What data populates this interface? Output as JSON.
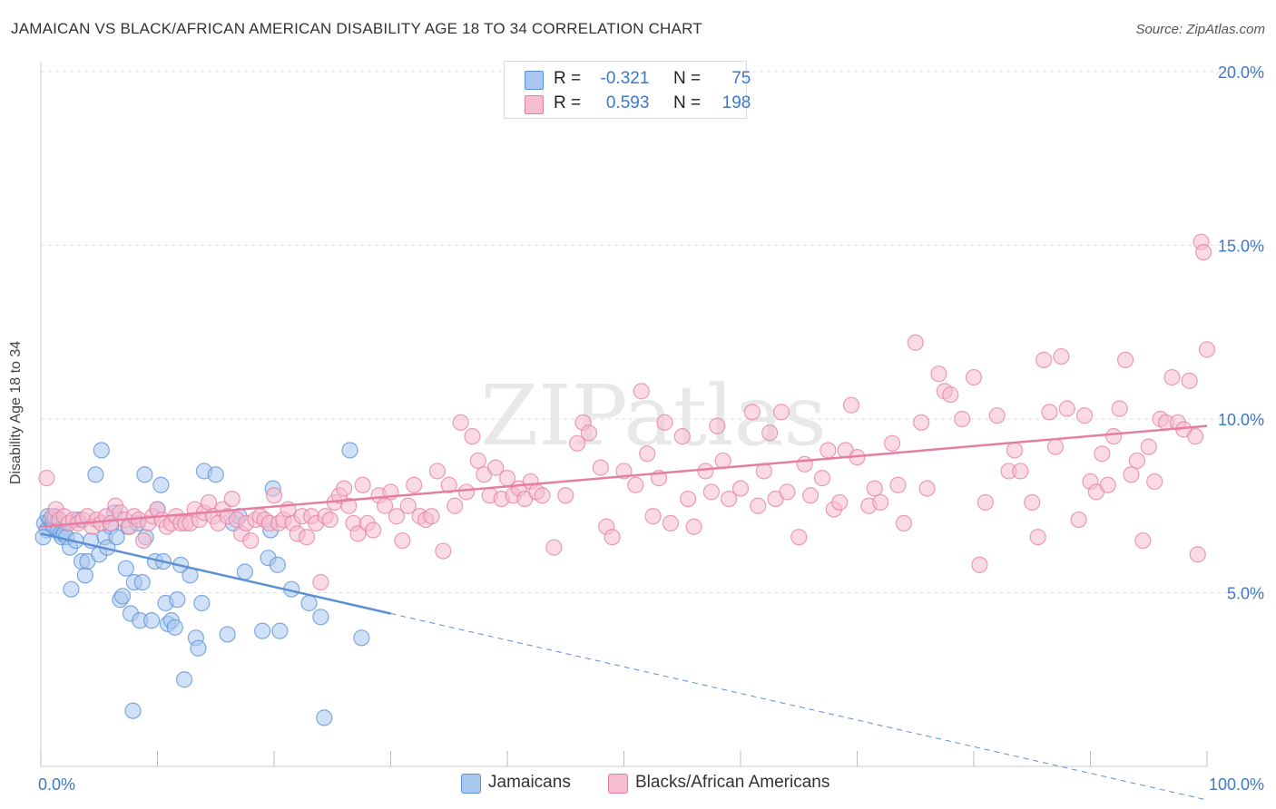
{
  "title": "JAMAICAN VS BLACK/AFRICAN AMERICAN DISABILITY AGE 18 TO 34 CORRELATION CHART",
  "source": "Source: ZipAtlas.com",
  "watermark": "ZIPatlas",
  "legend": {
    "r_label": "R =",
    "n_label": "N =",
    "series": [
      {
        "r": "-0.321",
        "n": "75",
        "fill": "#a9c8f0",
        "stroke": "#5b8fd6"
      },
      {
        "r": "0.593",
        "n": "198",
        "fill": "#f6bccf",
        "stroke": "#e47fa2"
      }
    ]
  },
  "bottom_legend": [
    "Jamaicans",
    "Blacks/African Americans"
  ],
  "chart_data": {
    "type": "scatter",
    "title": "JAMAICAN VS BLACK/AFRICAN AMERICAN DISABILITY AGE 18 TO 34 CORRELATION CHART",
    "xlabel": "",
    "ylabel": "Disability Age 18 to 34",
    "xlim": [
      0,
      100
    ],
    "ylim": [
      0,
      20.8
    ],
    "x_tick_labels": [
      "0.0%",
      "100.0%"
    ],
    "y_ticks": [
      5,
      10,
      15,
      20
    ],
    "y_tick_labels": [
      "5.0%",
      "10.0%",
      "15.0%",
      "20.0%"
    ],
    "grid": "horizontal dashed",
    "legend_position": "top-center",
    "series": [
      {
        "name": "Jamaicans",
        "color": "#5b8fd6",
        "fill": "#a9c8f0",
        "trend": {
          "x0": 0,
          "y0": 6.7,
          "x1": 30,
          "y1": 4.4,
          "dashed_to_x": 100
        },
        "points": [
          [
            0.3,
            7.0
          ],
          [
            0.5,
            6.8
          ],
          [
            0.6,
            7.2
          ],
          [
            0.8,
            7.1
          ],
          [
            1.0,
            7.0
          ],
          [
            1.1,
            6.9
          ],
          [
            1.2,
            7.2
          ],
          [
            1.5,
            6.8
          ],
          [
            1.7,
            6.7
          ],
          [
            1.8,
            6.6
          ],
          [
            2.0,
            6.7
          ],
          [
            2.2,
            6.6
          ],
          [
            2.5,
            6.3
          ],
          [
            2.6,
            5.1
          ],
          [
            3.0,
            6.5
          ],
          [
            3.2,
            7.1
          ],
          [
            3.5,
            5.9
          ],
          [
            3.8,
            5.5
          ],
          [
            4.0,
            5.9
          ],
          [
            4.3,
            6.5
          ],
          [
            4.7,
            8.4
          ],
          [
            5.0,
            6.1
          ],
          [
            5.2,
            9.1
          ],
          [
            5.5,
            6.6
          ],
          [
            5.7,
            6.3
          ],
          [
            6.0,
            6.9
          ],
          [
            6.3,
            7.3
          ],
          [
            6.5,
            6.6
          ],
          [
            6.8,
            4.8
          ],
          [
            7.0,
            4.9
          ],
          [
            7.3,
            5.7
          ],
          [
            7.5,
            6.9
          ],
          [
            7.7,
            4.4
          ],
          [
            7.9,
            1.6
          ],
          [
            8.0,
            5.3
          ],
          [
            8.3,
            7.0
          ],
          [
            8.5,
            4.2
          ],
          [
            8.7,
            5.3
          ],
          [
            8.9,
            8.4
          ],
          [
            9.0,
            6.6
          ],
          [
            9.5,
            4.2
          ],
          [
            9.8,
            5.9
          ],
          [
            10.0,
            7.4
          ],
          [
            10.3,
            8.1
          ],
          [
            10.5,
            5.9
          ],
          [
            10.7,
            4.7
          ],
          [
            10.9,
            4.1
          ],
          [
            11.2,
            4.2
          ],
          [
            11.5,
            4.0
          ],
          [
            11.7,
            4.8
          ],
          [
            12.0,
            5.8
          ],
          [
            12.3,
            2.5
          ],
          [
            12.8,
            5.5
          ],
          [
            13.3,
            3.7
          ],
          [
            13.5,
            3.4
          ],
          [
            13.8,
            4.7
          ],
          [
            14.0,
            8.5
          ],
          [
            15.0,
            8.4
          ],
          [
            16.0,
            3.8
          ],
          [
            16.5,
            7.0
          ],
          [
            17.0,
            7.2
          ],
          [
            17.5,
            5.6
          ],
          [
            19.0,
            3.9
          ],
          [
            19.5,
            6.0
          ],
          [
            19.7,
            6.8
          ],
          [
            19.9,
            8.0
          ],
          [
            20.3,
            5.8
          ],
          [
            20.5,
            3.9
          ],
          [
            21.5,
            5.1
          ],
          [
            23.0,
            4.7
          ],
          [
            24.0,
            4.3
          ],
          [
            24.3,
            1.4
          ],
          [
            26.5,
            9.1
          ],
          [
            27.5,
            3.7
          ],
          [
            0.2,
            6.6
          ]
        ]
      },
      {
        "name": "Blacks/African Americans",
        "color": "#e47fa2",
        "fill": "#f6bccf",
        "trend": {
          "x0": 0,
          "y0": 6.9,
          "x1": 100,
          "y1": 9.8
        },
        "points": [
          [
            0.5,
            8.3
          ],
          [
            1.0,
            7.2
          ],
          [
            1.3,
            7.4
          ],
          [
            1.6,
            7.1
          ],
          [
            2.0,
            7.2
          ],
          [
            2.4,
            7.0
          ],
          [
            2.8,
            7.1
          ],
          [
            3.2,
            7.0
          ],
          [
            3.6,
            7.1
          ],
          [
            4.0,
            7.2
          ],
          [
            4.4,
            6.9
          ],
          [
            4.8,
            7.1
          ],
          [
            5.2,
            7.0
          ],
          [
            5.6,
            7.2
          ],
          [
            6.0,
            7.0
          ],
          [
            6.4,
            7.5
          ],
          [
            6.8,
            7.3
          ],
          [
            7.2,
            7.1
          ],
          [
            7.6,
            6.9
          ],
          [
            8.0,
            7.2
          ],
          [
            8.4,
            7.1
          ],
          [
            8.8,
            6.5
          ],
          [
            9.2,
            7.0
          ],
          [
            9.6,
            7.2
          ],
          [
            10.0,
            7.4
          ],
          [
            10.4,
            7.1
          ],
          [
            10.8,
            6.9
          ],
          [
            11.2,
            7.0
          ],
          [
            11.6,
            7.2
          ],
          [
            12.0,
            7.0
          ],
          [
            12.4,
            7.0
          ],
          [
            12.8,
            7.0
          ],
          [
            13.2,
            7.4
          ],
          [
            13.6,
            7.1
          ],
          [
            14.0,
            7.3
          ],
          [
            14.4,
            7.6
          ],
          [
            14.8,
            7.2
          ],
          [
            15.2,
            7.0
          ],
          [
            15.6,
            7.4
          ],
          [
            16.0,
            7.2
          ],
          [
            16.4,
            7.7
          ],
          [
            16.8,
            7.1
          ],
          [
            17.2,
            6.7
          ],
          [
            17.6,
            7.0
          ],
          [
            18.0,
            6.5
          ],
          [
            18.4,
            7.1
          ],
          [
            18.8,
            7.2
          ],
          [
            19.2,
            7.1
          ],
          [
            19.6,
            7.0
          ],
          [
            20.0,
            7.8
          ],
          [
            20.4,
            7.0
          ],
          [
            20.8,
            7.1
          ],
          [
            21.2,
            7.4
          ],
          [
            21.6,
            7.0
          ],
          [
            22.0,
            6.7
          ],
          [
            22.4,
            7.2
          ],
          [
            22.8,
            6.6
          ],
          [
            23.2,
            7.2
          ],
          [
            23.6,
            7.0
          ],
          [
            24.0,
            5.3
          ],
          [
            24.4,
            7.2
          ],
          [
            24.8,
            7.1
          ],
          [
            25.2,
            7.6
          ],
          [
            25.6,
            7.8
          ],
          [
            26.0,
            8.0
          ],
          [
            26.4,
            7.5
          ],
          [
            26.8,
            7.0
          ],
          [
            27.2,
            6.7
          ],
          [
            27.6,
            8.1
          ],
          [
            28.0,
            7.0
          ],
          [
            28.5,
            6.8
          ],
          [
            29.0,
            7.8
          ],
          [
            29.5,
            7.5
          ],
          [
            30.0,
            7.9
          ],
          [
            30.5,
            7.2
          ],
          [
            31.0,
            6.5
          ],
          [
            31.5,
            7.5
          ],
          [
            32.0,
            8.1
          ],
          [
            32.5,
            7.2
          ],
          [
            33.0,
            7.1
          ],
          [
            33.5,
            7.2
          ],
          [
            34.0,
            8.5
          ],
          [
            34.5,
            6.2
          ],
          [
            35.0,
            8.1
          ],
          [
            35.5,
            7.5
          ],
          [
            36.0,
            9.9
          ],
          [
            36.5,
            7.9
          ],
          [
            37.0,
            9.5
          ],
          [
            37.5,
            8.8
          ],
          [
            38.0,
            8.4
          ],
          [
            38.5,
            7.8
          ],
          [
            39.0,
            8.6
          ],
          [
            39.5,
            7.7
          ],
          [
            40.0,
            8.3
          ],
          [
            40.5,
            7.8
          ],
          [
            41.0,
            8.0
          ],
          [
            41.5,
            7.7
          ],
          [
            42.0,
            8.2
          ],
          [
            42.5,
            7.9
          ],
          [
            43.0,
            7.8
          ],
          [
            44.0,
            6.3
          ],
          [
            45.0,
            7.8
          ],
          [
            46.0,
            9.3
          ],
          [
            46.5,
            9.9
          ],
          [
            47.0,
            9.6
          ],
          [
            48.0,
            8.6
          ],
          [
            48.5,
            6.9
          ],
          [
            49.0,
            6.6
          ],
          [
            50.0,
            8.5
          ],
          [
            51.0,
            8.1
          ],
          [
            51.5,
            10.8
          ],
          [
            52.0,
            9.0
          ],
          [
            52.5,
            7.2
          ],
          [
            53.0,
            8.3
          ],
          [
            53.5,
            9.9
          ],
          [
            54.0,
            7.0
          ],
          [
            55.0,
            9.5
          ],
          [
            55.5,
            7.7
          ],
          [
            56.0,
            6.9
          ],
          [
            57.0,
            8.5
          ],
          [
            57.5,
            7.9
          ],
          [
            58.0,
            9.8
          ],
          [
            58.5,
            8.8
          ],
          [
            59.0,
            7.7
          ],
          [
            60.0,
            8.0
          ],
          [
            61.0,
            10.2
          ],
          [
            61.5,
            7.5
          ],
          [
            62.0,
            8.5
          ],
          [
            62.5,
            9.6
          ],
          [
            63.0,
            7.7
          ],
          [
            63.5,
            10.2
          ],
          [
            64.0,
            7.9
          ],
          [
            65.0,
            6.6
          ],
          [
            65.5,
            8.7
          ],
          [
            66.0,
            7.8
          ],
          [
            67.0,
            8.3
          ],
          [
            67.5,
            9.1
          ],
          [
            68.0,
            7.4
          ],
          [
            68.5,
            7.6
          ],
          [
            69.0,
            9.1
          ],
          [
            69.5,
            10.4
          ],
          [
            70.0,
            8.9
          ],
          [
            71.0,
            7.5
          ],
          [
            71.5,
            8.0
          ],
          [
            72.0,
            7.6
          ],
          [
            73.0,
            9.3
          ],
          [
            73.5,
            8.1
          ],
          [
            74.0,
            7.0
          ],
          [
            75.0,
            12.2
          ],
          [
            75.5,
            9.9
          ],
          [
            76.0,
            8.0
          ],
          [
            77.0,
            11.3
          ],
          [
            77.5,
            10.8
          ],
          [
            78.0,
            10.7
          ],
          [
            79.0,
            10.0
          ],
          [
            80.0,
            11.2
          ],
          [
            80.5,
            5.8
          ],
          [
            81.0,
            7.6
          ],
          [
            82.0,
            10.1
          ],
          [
            83.0,
            8.5
          ],
          [
            83.5,
            9.1
          ],
          [
            84.0,
            8.5
          ],
          [
            85.0,
            7.6
          ],
          [
            85.5,
            6.6
          ],
          [
            86.0,
            11.7
          ],
          [
            86.5,
            10.2
          ],
          [
            87.0,
            9.2
          ],
          [
            87.5,
            11.8
          ],
          [
            88.0,
            10.3
          ],
          [
            89.0,
            7.1
          ],
          [
            89.5,
            10.1
          ],
          [
            90.0,
            8.2
          ],
          [
            90.5,
            7.9
          ],
          [
            91.0,
            9.0
          ],
          [
            91.5,
            8.1
          ],
          [
            92.0,
            9.5
          ],
          [
            92.5,
            10.3
          ],
          [
            93.0,
            11.7
          ],
          [
            93.5,
            8.4
          ],
          [
            94.0,
            8.8
          ],
          [
            94.5,
            6.5
          ],
          [
            95.0,
            9.2
          ],
          [
            95.5,
            8.2
          ],
          [
            96.0,
            10.0
          ],
          [
            96.5,
            9.9
          ],
          [
            97.0,
            11.2
          ],
          [
            97.5,
            9.9
          ],
          [
            98.0,
            9.7
          ],
          [
            98.5,
            11.1
          ],
          [
            99.0,
            9.5
          ],
          [
            99.2,
            6.1
          ],
          [
            99.5,
            15.1
          ],
          [
            99.7,
            14.8
          ],
          [
            100.0,
            12.0
          ]
        ]
      }
    ]
  }
}
